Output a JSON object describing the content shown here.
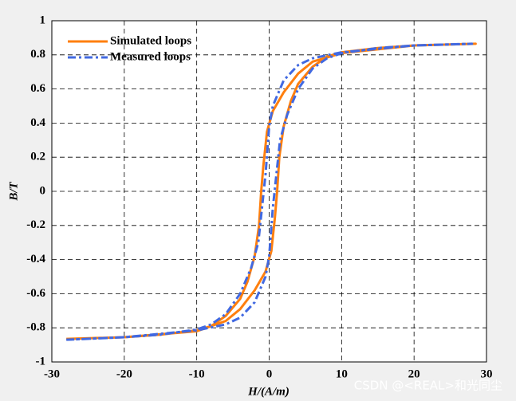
{
  "chart_data": {
    "type": "line",
    "x_label": "H/(A/m)",
    "y_label": "B/T",
    "xlim": [
      -30,
      30
    ],
    "xticks": [
      -30,
      -20,
      -10,
      0,
      10,
      20,
      30
    ],
    "ylim": [
      -1,
      1
    ],
    "yticks": [
      -1,
      -0.8,
      -0.6,
      -0.4,
      -0.2,
      0,
      0.2,
      0.4,
      0.6,
      0.8,
      1
    ],
    "grid": true,
    "legend": "upper left",
    "series": [
      {
        "name": "Simulated loops",
        "color": "#ff7f0e",
        "style": "solid",
        "x": [
          -28,
          -20,
          -10,
          -6,
          -4,
          -2,
          -0.5,
          0.3,
          0.8,
          1.1,
          1.4,
          2,
          3,
          4,
          6,
          8,
          10,
          15,
          20,
          28.5,
          20,
          10,
          6,
          4,
          2,
          0.5,
          -0.3,
          -0.8,
          -1.1,
          -1.4,
          -2,
          -3,
          -4,
          -6,
          -8,
          -10,
          -15,
          -20,
          -28
        ],
        "values": [
          -0.865,
          -0.855,
          -0.82,
          -0.76,
          -0.69,
          -0.58,
          -0.47,
          -0.35,
          -0.15,
          0,
          0.2,
          0.38,
          0.53,
          0.63,
          0.73,
          0.79,
          0.815,
          0.84,
          0.855,
          0.865,
          0.855,
          0.81,
          0.76,
          0.69,
          0.58,
          0.47,
          0.35,
          0.15,
          0,
          -0.2,
          -0.38,
          -0.53,
          -0.63,
          -0.73,
          -0.79,
          -0.815,
          -0.84,
          -0.855,
          -0.865
        ]
      },
      {
        "name": "Measured loops",
        "color": "#4169e1",
        "style": "dashdot",
        "x": [
          -28,
          -20,
          -10,
          -6,
          -4,
          -2,
          -0.5,
          0,
          0.5,
          1,
          1.5,
          2.5,
          4,
          6,
          8,
          10,
          15,
          20,
          28,
          20,
          10,
          6,
          4,
          2,
          0.5,
          0,
          -0.5,
          -1,
          -1.5,
          -2.5,
          -4,
          -6,
          -8,
          -10,
          -15,
          -20,
          -28
        ],
        "values": [
          -0.87,
          -0.855,
          -0.815,
          -0.78,
          -0.74,
          -0.65,
          -0.5,
          -0.38,
          -0.1,
          0.1,
          0.3,
          0.45,
          0.6,
          0.72,
          0.78,
          0.81,
          0.84,
          0.855,
          0.865,
          0.855,
          0.815,
          0.78,
          0.74,
          0.65,
          0.5,
          0.38,
          0.1,
          -0.1,
          -0.3,
          -0.45,
          -0.6,
          -0.72,
          -0.78,
          -0.81,
          -0.84,
          -0.855,
          -0.87
        ]
      }
    ]
  },
  "watermark": "CSDN @<REAL>和光同尘"
}
